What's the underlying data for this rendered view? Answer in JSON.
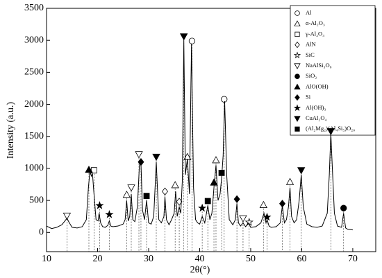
{
  "chart_data": {
    "type": "xrd",
    "x_label": "2θ(°)",
    "y_label": "Intensity (a.u.)",
    "xlim": [
      10,
      74.5
    ],
    "ylim": [
      -300,
      3500
    ],
    "xticks": [
      10,
      20,
      30,
      40,
      50,
      60,
      70
    ],
    "yticks": [
      0,
      500,
      1000,
      1500,
      2000,
      2500,
      3000,
      3500
    ],
    "spectrum": {
      "color": "#000000",
      "x": [
        10,
        11,
        12,
        13,
        13.6,
        14,
        14.4,
        15,
        16,
        17,
        17.8,
        18.2,
        18.5,
        18.8,
        19,
        19.3,
        19.7,
        20.1,
        20.3,
        20.6,
        21,
        21.5,
        22,
        22.3,
        22.6,
        23,
        24,
        25,
        25.4,
        25.7,
        26,
        26.3,
        26.6,
        26.9,
        27.3,
        27.8,
        28.2,
        28.5,
        28.8,
        29.2,
        29.6,
        30,
        30.5,
        31,
        31.5,
        32,
        32.5,
        33,
        33.2,
        33.5,
        34,
        34.5,
        35,
        35.3,
        35.6,
        36,
        36.3,
        36.6,
        36.9,
        37.2,
        37.6,
        38,
        38.4,
        38.8,
        39.2,
        39.6,
        40,
        40.5,
        41,
        41.6,
        42,
        42.4,
        42.8,
        43.2,
        43.6,
        44,
        44.3,
        44.6,
        44.9,
        45.3,
        45.8,
        46.5,
        47,
        47.3,
        47.6,
        48,
        48.5,
        49,
        49.6,
        50,
        51,
        52,
        52.6,
        53,
        53.2,
        53.6,
        54,
        55,
        55.8,
        56.2,
        56.6,
        57,
        57.4,
        57.7,
        58,
        58.5,
        59,
        59.5,
        59.9,
        60.3,
        61,
        62,
        63,
        64,
        65,
        65.4,
        65.7,
        66,
        66.4,
        67,
        67.8,
        68.2,
        68.6,
        69,
        70
      ],
      "values": [
        100,
        60,
        80,
        120,
        180,
        220,
        160,
        80,
        70,
        90,
        200,
        700,
        950,
        880,
        920,
        600,
        200,
        180,
        300,
        150,
        90,
        80,
        110,
        180,
        100,
        90,
        100,
        130,
        200,
        500,
        180,
        250,
        600,
        200,
        170,
        400,
        1050,
        1080,
        350,
        200,
        500,
        150,
        130,
        250,
        1100,
        200,
        150,
        250,
        560,
        200,
        120,
        200,
        300,
        640,
        250,
        400,
        300,
        800,
        3000,
        900,
        1150,
        600,
        2950,
        700,
        200,
        150,
        130,
        250,
        150,
        420,
        200,
        300,
        700,
        1050,
        500,
        600,
        850,
        1200,
        2050,
        900,
        200,
        120,
        200,
        450,
        150,
        100,
        150,
        90,
        150,
        80,
        90,
        150,
        300,
        150,
        200,
        100,
        80,
        90,
        150,
        420,
        150,
        200,
        400,
        700,
        250,
        150,
        200,
        500,
        900,
        400,
        130,
        90,
        80,
        100,
        300,
        900,
        1550,
        1000,
        300,
        100,
        80,
        300,
        70,
        50,
        40
      ]
    },
    "phases": [
      {
        "name": "Al",
        "symbol": "circle",
        "filled": false,
        "x": [
          38.5,
          44.8
        ],
        "values": [
          2990,
          2080
        ]
      },
      {
        "name": "α-Al₂O₃",
        "symbol": "triangle",
        "filled": false,
        "x": [
          25.7,
          35.2,
          37.6,
          43.2,
          52.5,
          57.7
        ],
        "values": [
          590,
          740,
          1180,
          1130,
          430,
          790
        ]
      },
      {
        "name": "γ-Al₂O₃",
        "symbol": "square",
        "filled": false,
        "x": [
          19.3
        ],
        "values": [
          970
        ]
      },
      {
        "name": "AlN",
        "symbol": "diamond",
        "filled": false,
        "x": [
          33.2,
          36.0
        ],
        "values": [
          640,
          480
        ]
      },
      {
        "name": "SiC",
        "symbol": "star",
        "filled": false,
        "x": [
          49.7
        ],
        "values": [
          160
        ]
      },
      {
        "name": "NaAlSi₃O₈",
        "symbol": "triangle-down",
        "filled": false,
        "x": [
          14.0,
          26.6,
          28.1,
          48.5
        ],
        "values": [
          260,
          700,
          1220,
          220
        ]
      },
      {
        "name": "SiO₂",
        "symbol": "circle",
        "filled": true,
        "x": [
          68.2
        ],
        "values": [
          380
        ]
      },
      {
        "name": "AlO(OH)",
        "symbol": "triangle",
        "filled": true,
        "x": [
          18.3,
          42.8
        ],
        "values": [
          980,
          780
        ]
      },
      {
        "name": "Si",
        "symbol": "diamond",
        "filled": true,
        "x": [
          28.5,
          47.3,
          56.2
        ],
        "values": [
          1100,
          520,
          450
        ]
      },
      {
        "name": "Al(OH)₃",
        "symbol": "star",
        "filled": true,
        "x": [
          20.4,
          22.3,
          40.5,
          53.2
        ],
        "values": [
          420,
          280,
          380,
          240
        ]
      },
      {
        "name": "CuAl₂O₄",
        "symbol": "triangle-down",
        "filled": true,
        "x": [
          31.5,
          36.9,
          59.9,
          65.7
        ],
        "values": [
          1180,
          3060,
          970,
          1580
        ]
      },
      {
        "name": "(Al₂Mg₂)(Al₄Si₅)O₂₀",
        "symbol": "square",
        "filled": true,
        "x": [
          29.6,
          41.6,
          44.3
        ],
        "values": [
          570,
          490,
          930
        ]
      }
    ]
  }
}
